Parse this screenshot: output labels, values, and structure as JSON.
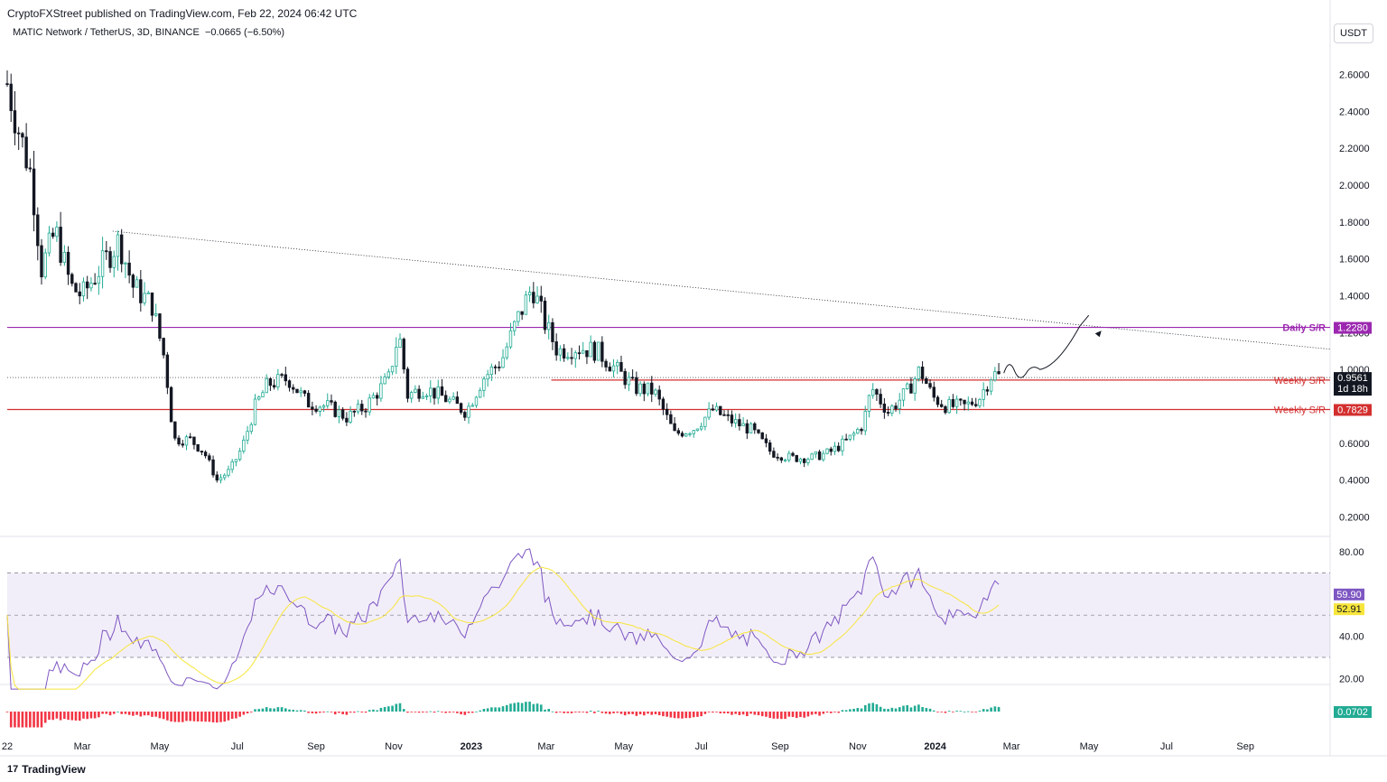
{
  "header": {
    "published": "CryptoFXStreet published on TradingView.com, Feb 22, 2024 06:42 UTC",
    "symbol": "MATIC Network / TetherUS, 3D, BINANCE",
    "change": "−0.0665 (−6.50%)",
    "currency": "USDT"
  },
  "footer": {
    "brand": "TradingView",
    "logo": "17"
  },
  "colors": {
    "up": "#22ab94",
    "down": "#131722",
    "rsi": "#7e57c2",
    "rsi_ma": "#f7e53b",
    "daily_sr": "#9c27b0",
    "weekly_sr": "#d32f2f",
    "hist_up": "#22ab94",
    "hist_down": "#f23645"
  },
  "chart_data": {
    "type": "candlestick",
    "x_ticks": [
      "22",
      "Mar",
      "May",
      "Jul",
      "Sep",
      "Nov",
      "2023",
      "Mar",
      "May",
      "Jul",
      "Sep",
      "Nov",
      "2024",
      "Mar",
      "May",
      "Jul",
      "Sep"
    ],
    "price_ticks": [
      "2.6000",
      "2.4000",
      "2.2000",
      "2.0000",
      "1.8000",
      "1.6000",
      "1.4000",
      "1.2000",
      "1.0000",
      "0.6000",
      "0.4000",
      "0.2000"
    ],
    "rsi_ticks": [
      "80.00",
      "40.00",
      "20.00"
    ],
    "levels": [
      {
        "name": "Daily S/R",
        "value": 1.228,
        "label": "1.2280"
      },
      {
        "name": "Weekly S/R",
        "value": 0.9426,
        "label": "0.9426"
      },
      {
        "name": "Weekly S/R",
        "value": 0.7829,
        "label": "0.7829"
      }
    ],
    "last_price": {
      "value": 0.9561,
      "label": "0.9561",
      "countdown": "1d 18h"
    },
    "rsi": {
      "value": "59.90",
      "ma": "52.91",
      "upper": 70,
      "lower": 30,
      "mid": 50
    },
    "macd_hist": {
      "value": "0.0702"
    },
    "close_path": [
      [
        "2022-01-01",
        2.55
      ],
      [
        "2022-01-10",
        2.3
      ],
      [
        "2022-01-20",
        2.05
      ],
      [
        "2022-01-28",
        1.55
      ],
      [
        "2022-02-08",
        1.75
      ],
      [
        "2022-02-20",
        1.45
      ],
      [
        "2022-03-01",
        1.4
      ],
      [
        "2022-03-15",
        1.55
      ],
      [
        "2022-03-30",
        1.7
      ],
      [
        "2022-04-10",
        1.45
      ],
      [
        "2022-04-25",
        1.35
      ],
      [
        "2022-05-05",
        1.05
      ],
      [
        "2022-05-12",
        0.62
      ],
      [
        "2022-05-25",
        0.62
      ],
      [
        "2022-06-05",
        0.55
      ],
      [
        "2022-06-15",
        0.4
      ],
      [
        "2022-06-25",
        0.45
      ],
      [
        "2022-07-05",
        0.58
      ],
      [
        "2022-07-15",
        0.8
      ],
      [
        "2022-07-25",
        0.92
      ],
      [
        "2022-08-10",
        0.95
      ],
      [
        "2022-08-25",
        0.82
      ],
      [
        "2022-09-10",
        0.8
      ],
      [
        "2022-09-25",
        0.74
      ],
      [
        "2022-10-10",
        0.8
      ],
      [
        "2022-10-28",
        0.95
      ],
      [
        "2022-11-05",
        1.2
      ],
      [
        "2022-11-12",
        0.86
      ],
      [
        "2022-11-25",
        0.9
      ],
      [
        "2022-12-10",
        0.85
      ],
      [
        "2022-12-28",
        0.77
      ],
      [
        "2023-01-10",
        0.95
      ],
      [
        "2023-01-25",
        1.05
      ],
      [
        "2023-02-05",
        1.25
      ],
      [
        "2023-02-18",
        1.45
      ],
      [
        "2023-02-28",
        1.25
      ],
      [
        "2023-03-10",
        1.1
      ],
      [
        "2023-03-25",
        1.12
      ],
      [
        "2023-04-10",
        1.1
      ],
      [
        "2023-04-25",
        1.0
      ],
      [
        "2023-05-10",
        0.9
      ],
      [
        "2023-05-25",
        0.88
      ],
      [
        "2023-06-10",
        0.65
      ],
      [
        "2023-06-25",
        0.68
      ],
      [
        "2023-07-10",
        0.78
      ],
      [
        "2023-07-25",
        0.72
      ],
      [
        "2023-08-10",
        0.67
      ],
      [
        "2023-08-25",
        0.55
      ],
      [
        "2023-09-10",
        0.52
      ],
      [
        "2023-09-25",
        0.52
      ],
      [
        "2023-10-10",
        0.55
      ],
      [
        "2023-10-25",
        0.62
      ],
      [
        "2023-11-05",
        0.7
      ],
      [
        "2023-11-12",
        0.9
      ],
      [
        "2023-11-25",
        0.77
      ],
      [
        "2023-12-10",
        0.88
      ],
      [
        "2023-12-20",
        1.0
      ],
      [
        "2023-12-30",
        0.85
      ],
      [
        "2024-01-10",
        0.8
      ],
      [
        "2024-01-25",
        0.8
      ],
      [
        "2024-02-05",
        0.85
      ],
      [
        "2024-02-15",
        0.98
      ],
      [
        "2024-02-22",
        0.9561
      ]
    ]
  }
}
